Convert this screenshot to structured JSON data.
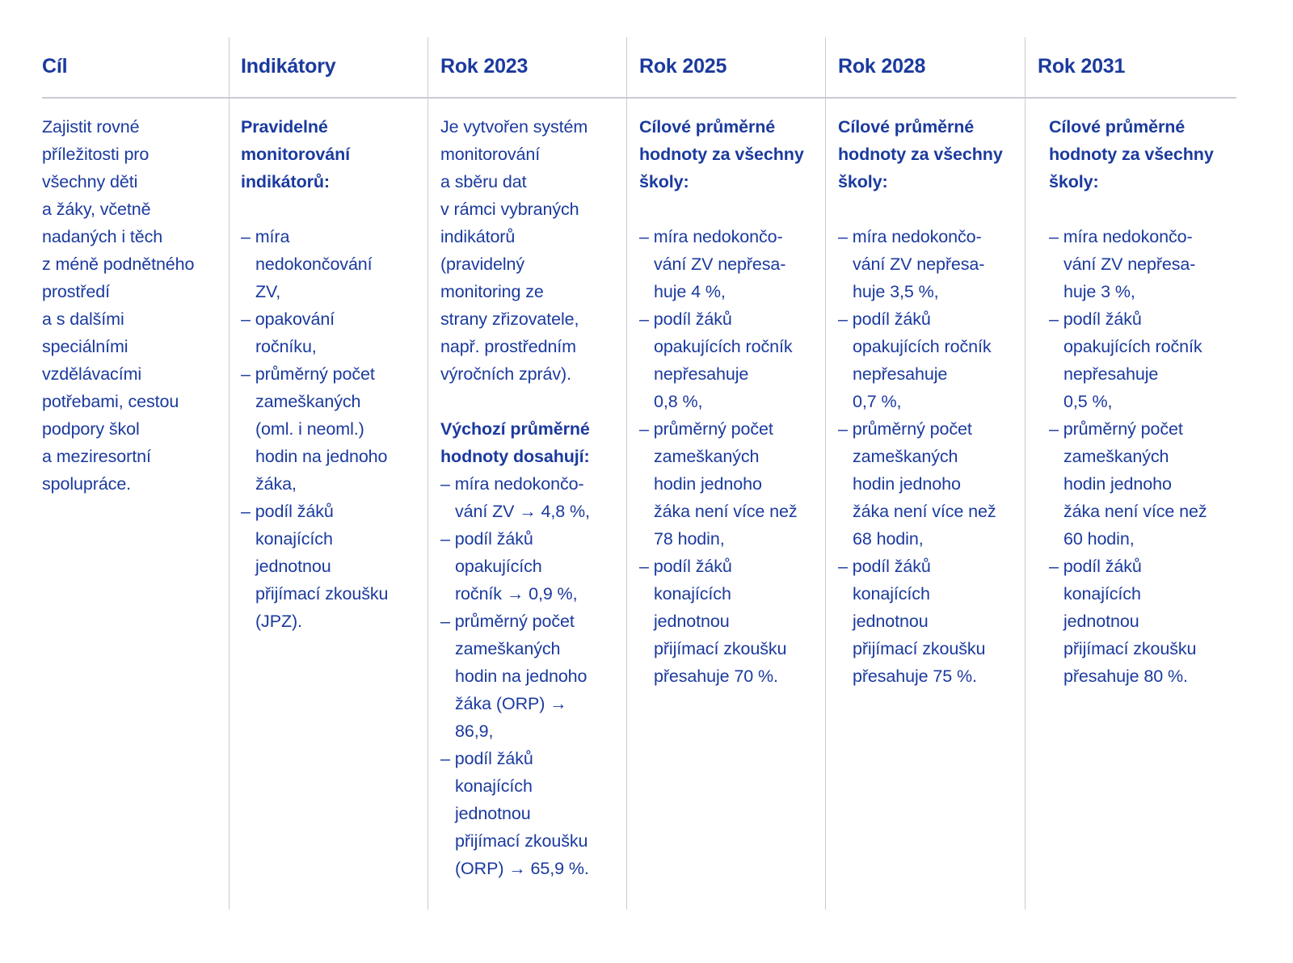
{
  "colors": {
    "text": "#1b3a9e",
    "rule": "#c9ccd2"
  },
  "headers": [
    "Cíl",
    "Indikátory",
    "Rok 2023",
    "Rok 2025",
    "Rok 2028",
    "Rok 2031"
  ],
  "columns": [
    {
      "lines": [
        {
          "t": "n",
          "text": "Zajistit rovné"
        },
        {
          "t": "n",
          "text": "příležitosti pro"
        },
        {
          "t": "n",
          "text": "všechny děti"
        },
        {
          "t": "n",
          "text": "a žáky, včetně"
        },
        {
          "t": "n",
          "text": "nadaných i těch"
        },
        {
          "t": "n",
          "text": "z méně podnětného"
        },
        {
          "t": "n",
          "text": "prostředí"
        },
        {
          "t": "n",
          "text": "a s dalšími"
        },
        {
          "t": "n",
          "text": "speciálními"
        },
        {
          "t": "n",
          "text": "vzdělávacími"
        },
        {
          "t": "n",
          "text": "potřebami, cestou"
        },
        {
          "t": "n",
          "text": "podpory škol"
        },
        {
          "t": "n",
          "text": "a meziresortní"
        },
        {
          "t": "n",
          "text": "spolupráce."
        }
      ]
    },
    {
      "lines": [
        {
          "t": "b",
          "text": "Pravidelné"
        },
        {
          "t": "b",
          "text": "monitorování"
        },
        {
          "t": "b",
          "text": "indikátorů:"
        },
        {
          "t": "blank",
          "text": ""
        },
        {
          "t": "n",
          "text": "– míra"
        },
        {
          "t": "c",
          "text": "nedokončování"
        },
        {
          "t": "c",
          "text": "ZV,"
        },
        {
          "t": "n",
          "text": "– opakování"
        },
        {
          "t": "c",
          "text": "ročníku,"
        },
        {
          "t": "n",
          "text": "– průměrný počet"
        },
        {
          "t": "c",
          "text": "zameškaných"
        },
        {
          "t": "c",
          "text": "(oml. i neoml.)"
        },
        {
          "t": "c",
          "text": "hodin na jednoho"
        },
        {
          "t": "c",
          "text": "žáka,"
        },
        {
          "t": "n",
          "text": "– podíl žáků"
        },
        {
          "t": "c",
          "text": "konajících"
        },
        {
          "t": "c",
          "text": "jednotnou"
        },
        {
          "t": "c",
          "text": "přijímací zkoušku"
        },
        {
          "t": "c",
          "text": "(JPZ)."
        }
      ]
    },
    {
      "lines": [
        {
          "t": "n",
          "text": "Je vytvořen systém"
        },
        {
          "t": "n",
          "text": "monitorování"
        },
        {
          "t": "n",
          "text": "a sběru dat"
        },
        {
          "t": "n",
          "text": "v rámci vybraných"
        },
        {
          "t": "n",
          "text": "indikátorů"
        },
        {
          "t": "n",
          "text": "(pravidelný"
        },
        {
          "t": "n",
          "text": "monitoring ze"
        },
        {
          "t": "n",
          "text": "strany zřizovatele,"
        },
        {
          "t": "n",
          "text": "např. prostředním"
        },
        {
          "t": "n",
          "text": "výročních zpráv)."
        },
        {
          "t": "blank",
          "text": ""
        },
        {
          "t": "b",
          "text": "Výchozí průměrné"
        },
        {
          "t": "b",
          "text": "hodnoty dosahují:"
        },
        {
          "t": "n",
          "text": "– míra nedokončo-"
        },
        {
          "t": "c",
          "text": "vání ZV → 4,8 %,"
        },
        {
          "t": "n",
          "text": "– podíl žáků"
        },
        {
          "t": "c",
          "text": "opakujících"
        },
        {
          "t": "c",
          "text": "ročník → 0,9 %,"
        },
        {
          "t": "n",
          "text": "– průměrný počet"
        },
        {
          "t": "c",
          "text": "zameškaných"
        },
        {
          "t": "c",
          "text": "hodin na jednoho"
        },
        {
          "t": "c",
          "text": "žáka (ORP) →"
        },
        {
          "t": "c",
          "text": "86,9,"
        },
        {
          "t": "n",
          "text": "– podíl žáků"
        },
        {
          "t": "c",
          "text": "konajících"
        },
        {
          "t": "c",
          "text": "jednotnou"
        },
        {
          "t": "c",
          "text": "přijímací zkoušku"
        },
        {
          "t": "c",
          "text": "(ORP) → 65,9 %."
        }
      ]
    },
    {
      "lines": [
        {
          "t": "b",
          "text": "Cílové průměrné"
        },
        {
          "t": "b",
          "text": "hodnoty za všechny"
        },
        {
          "t": "b",
          "text": "školy:"
        },
        {
          "t": "blank",
          "text": ""
        },
        {
          "t": "n",
          "text": "– míra nedokončo-"
        },
        {
          "t": "c",
          "text": "vání ZV nepřesa-"
        },
        {
          "t": "c",
          "text": "huje 4 %,"
        },
        {
          "t": "n",
          "text": "– podíl žáků"
        },
        {
          "t": "c",
          "text": "opakujících ročník"
        },
        {
          "t": "c",
          "text": "nepřesahuje"
        },
        {
          "t": "c",
          "text": "0,8 %,"
        },
        {
          "t": "n",
          "text": "– průměrný počet"
        },
        {
          "t": "c",
          "text": "zameškaných"
        },
        {
          "t": "c",
          "text": "hodin jednoho"
        },
        {
          "t": "c",
          "text": "žáka není více než"
        },
        {
          "t": "c",
          "text": "78 hodin,"
        },
        {
          "t": "n",
          "text": "– podíl žáků"
        },
        {
          "t": "c",
          "text": "konajících"
        },
        {
          "t": "c",
          "text": "jednotnou"
        },
        {
          "t": "c",
          "text": "přijímací zkoušku"
        },
        {
          "t": "c",
          "text": "přesahuje 70 %."
        }
      ]
    },
    {
      "lines": [
        {
          "t": "b",
          "text": "Cílové průměrné"
        },
        {
          "t": "b",
          "text": "hodnoty za všechny"
        },
        {
          "t": "b",
          "text": "školy:"
        },
        {
          "t": "blank",
          "text": ""
        },
        {
          "t": "n",
          "text": "– míra nedokončo-"
        },
        {
          "t": "c",
          "text": "vání ZV nepřesa-"
        },
        {
          "t": "c",
          "text": "huje 3,5 %,"
        },
        {
          "t": "n",
          "text": "– podíl žáků"
        },
        {
          "t": "c",
          "text": "opakujících ročník"
        },
        {
          "t": "c",
          "text": "nepřesahuje"
        },
        {
          "t": "c",
          "text": "0,7 %,"
        },
        {
          "t": "n",
          "text": "– průměrný počet"
        },
        {
          "t": "c",
          "text": "zameškaných"
        },
        {
          "t": "c",
          "text": "hodin jednoho"
        },
        {
          "t": "c",
          "text": "žáka není více než"
        },
        {
          "t": "c",
          "text": "68 hodin,"
        },
        {
          "t": "n",
          "text": "– podíl žáků"
        },
        {
          "t": "c",
          "text": "konajících"
        },
        {
          "t": "c",
          "text": "jednotnou"
        },
        {
          "t": "c",
          "text": "přijímací zkoušku"
        },
        {
          "t": "c",
          "text": "přesahuje 75 %."
        }
      ]
    },
    {
      "lines": [
        {
          "t": "b",
          "text": "Cílové průměrné"
        },
        {
          "t": "b",
          "text": "hodnoty za všechny"
        },
        {
          "t": "b",
          "text": "školy:"
        },
        {
          "t": "blank",
          "text": ""
        },
        {
          "t": "n",
          "text": "– míra nedokončo-"
        },
        {
          "t": "c",
          "text": "vání ZV nepřesa-"
        },
        {
          "t": "c",
          "text": "huje 3 %,"
        },
        {
          "t": "n",
          "text": "– podíl žáků"
        },
        {
          "t": "c",
          "text": "opakujících ročník"
        },
        {
          "t": "c",
          "text": "nepřesahuje"
        },
        {
          "t": "c",
          "text": "0,5 %,"
        },
        {
          "t": "n",
          "text": "– průměrný počet"
        },
        {
          "t": "c",
          "text": "zameškaných"
        },
        {
          "t": "c",
          "text": "hodin jednoho"
        },
        {
          "t": "c",
          "text": "žáka není více než"
        },
        {
          "t": "c",
          "text": "60 hodin,"
        },
        {
          "t": "n",
          "text": "– podíl žáků"
        },
        {
          "t": "c",
          "text": "konajících"
        },
        {
          "t": "c",
          "text": "jednotnou"
        },
        {
          "t": "c",
          "text": "přijímací zkoušku"
        },
        {
          "t": "c",
          "text": "přesahuje 80 %."
        }
      ]
    }
  ]
}
